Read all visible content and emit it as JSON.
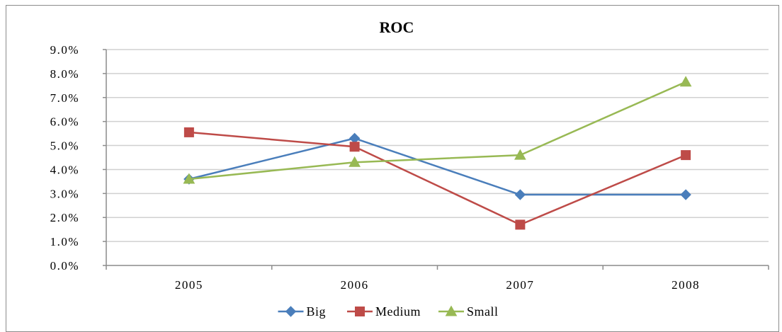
{
  "chart_data": {
    "type": "line",
    "title": "ROC",
    "xlabel": "",
    "ylabel": "",
    "categories": [
      "2005",
      "2006",
      "2007",
      "2008"
    ],
    "ylim": [
      0,
      9
    ],
    "yticks": [
      "0.0%",
      "1.0%",
      "2.0%",
      "3.0%",
      "4.0%",
      "5.0%",
      "6.0%",
      "7.0%",
      "8.0%",
      "9.0%"
    ],
    "y_unit": "%",
    "grid": true,
    "legend_position": "bottom",
    "series": [
      {
        "name": "Big",
        "values": [
          3.6,
          5.3,
          2.95,
          2.95
        ],
        "color": "#4a7ebb",
        "marker": "diamond"
      },
      {
        "name": "Medium",
        "values": [
          5.55,
          4.95,
          1.7,
          4.6
        ],
        "color": "#be4b48",
        "marker": "square"
      },
      {
        "name": "Small",
        "values": [
          3.6,
          4.3,
          4.6,
          7.65
        ],
        "color": "#98b954",
        "marker": "triangle"
      }
    ]
  }
}
